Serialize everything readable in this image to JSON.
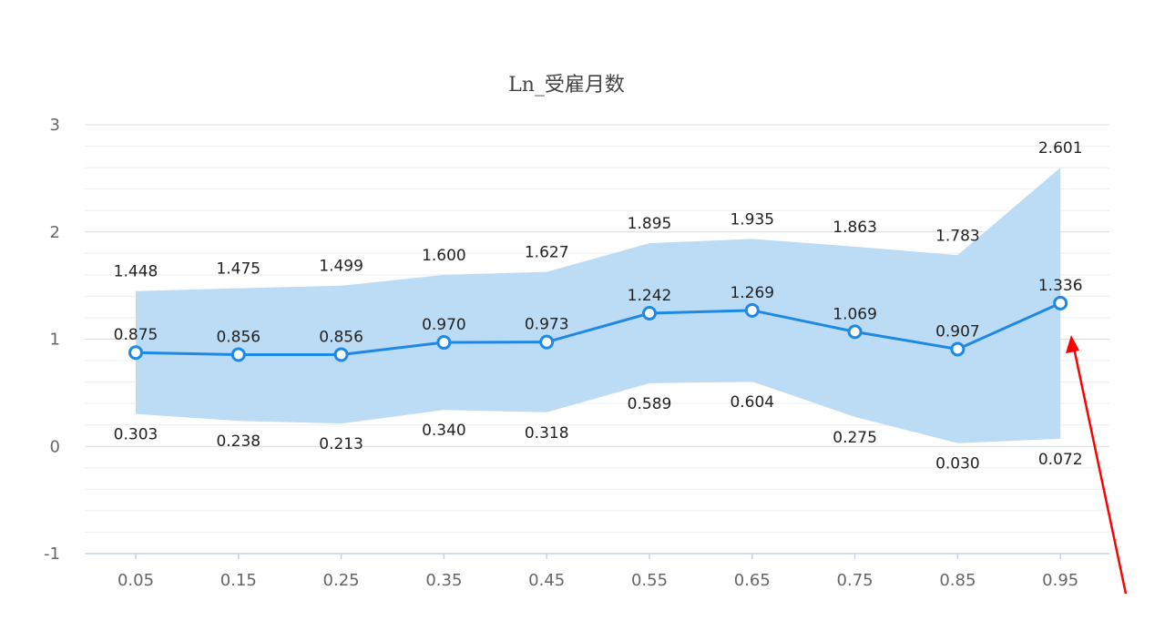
{
  "chart_data": {
    "type": "line",
    "title": "Ln_受雇月数",
    "xlabel": "",
    "ylabel": "",
    "ylim": [
      -1,
      3
    ],
    "y_ticks": [
      "-1",
      "0",
      "1",
      "2",
      "3"
    ],
    "categories": [
      "0.05",
      "0.15",
      "0.25",
      "0.35",
      "0.45",
      "0.55",
      "0.65",
      "0.75",
      "0.85",
      "0.95"
    ],
    "series": [
      {
        "values": [
          0.875,
          0.856,
          0.856,
          0.97,
          0.973,
          1.242,
          1.269,
          1.069,
          0.907,
          1.336
        ],
        "labels": [
          "0.875",
          "0.856",
          "0.856",
          "0.970",
          "0.973",
          "1.242",
          "1.269",
          "1.069",
          "0.907",
          "1.336"
        ]
      }
    ],
    "band": {
      "upper": [
        1.448,
        1.475,
        1.499,
        1.6,
        1.627,
        1.895,
        1.935,
        1.863,
        1.783,
        2.601
      ],
      "upper_labels": [
        "1.448",
        "1.475",
        "1.499",
        "1.600",
        "1.627",
        "1.895",
        "1.935",
        "1.863",
        "1.783",
        "2.601"
      ],
      "lower": [
        0.303,
        0.238,
        0.213,
        0.34,
        0.318,
        0.589,
        0.604,
        0.275,
        0.03,
        0.072
      ],
      "lower_labels": [
        "0.303",
        "0.238",
        "0.213",
        "0.340",
        "0.318",
        "0.589",
        "0.604",
        "0.275",
        "0.030",
        "0.072"
      ]
    },
    "grid": true,
    "colors": {
      "line": "#1e88e5",
      "band": "#b8daf6",
      "grid": "#e6e6e6",
      "axis": "#c5d4ea",
      "annotation_arrow": "#ff0000"
    }
  }
}
